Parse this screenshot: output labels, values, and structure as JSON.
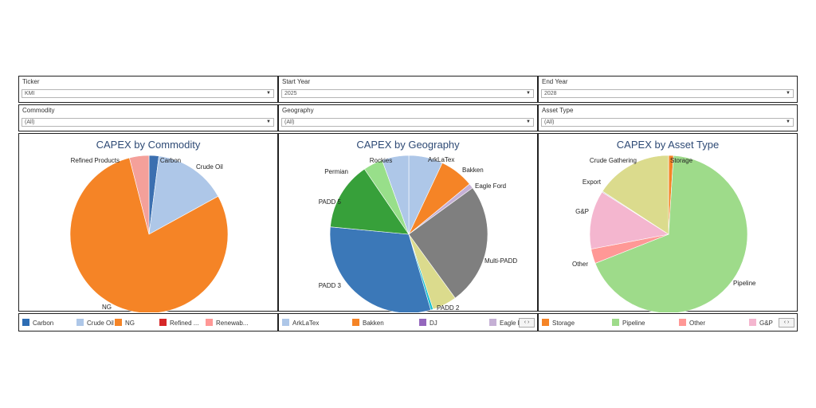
{
  "filters": [
    {
      "label": "Ticker",
      "value": "KMI"
    },
    {
      "label": "Start Year",
      "value": "2025"
    },
    {
      "label": "End Year",
      "value": "2028"
    },
    {
      "label": "Commodity",
      "value": "(All)"
    },
    {
      "label": "Geography",
      "value": "(All)"
    },
    {
      "label": "Asset Type",
      "value": "(All)"
    }
  ],
  "chart_data": [
    {
      "type": "pie",
      "title": "CAPEX by Commodity",
      "slices": [
        {
          "label": "Carbon",
          "value": 2,
          "color": "#3b6fb0"
        },
        {
          "label": "Crude Oil",
          "value": 15,
          "color": "#aec7e8"
        },
        {
          "label": "NG",
          "value": 79,
          "color": "#f58426"
        },
        {
          "label": "Refined Products",
          "value": 4,
          "color": "#f4a09a"
        }
      ],
      "legend": [
        {
          "label": "Carbon",
          "color": "#2d6db4"
        },
        {
          "label": "Crude Oil",
          "color": "#aec7e8"
        },
        {
          "label": "NG",
          "color": "#f58426"
        },
        {
          "label": "Refined ...",
          "color": "#d62728"
        },
        {
          "label": "Renewab...",
          "color": "#ff9896"
        }
      ]
    },
    {
      "type": "pie",
      "title": "CAPEX by Geography",
      "slices": [
        {
          "label": "ArkLaTex",
          "value": 7,
          "color": "#aec7e8"
        },
        {
          "label": "Bakken",
          "value": 7,
          "color": "#f58426"
        },
        {
          "label": "Eagle Ford",
          "value": 1,
          "color": "#c5b0d5"
        },
        {
          "label": "Multi-PADD",
          "value": 25,
          "color": "#7f7f7f"
        },
        {
          "label": "PADD 2",
          "value": 5,
          "color": "#dbdb8d"
        },
        {
          "label": "",
          "value": 0.5,
          "color": "#17becf"
        },
        {
          "label": "PADD 3",
          "value": 31,
          "color": "#3b78b8"
        },
        {
          "label": "PADD 5",
          "value": 0,
          "color": "#98df8a"
        },
        {
          "label": "Permian",
          "value": 14,
          "color": "#37a03a"
        },
        {
          "label": "Rockies",
          "value": 4,
          "color": "#98df8a"
        },
        {
          "label": "",
          "value": 5.5,
          "color": "#aec7e8"
        }
      ],
      "legend": [
        {
          "label": "ArkLaTex",
          "color": "#aec7e8"
        },
        {
          "label": "Bakken",
          "color": "#f58426"
        },
        {
          "label": "DJ",
          "color": "#9467bd"
        },
        {
          "label": "Eagle F",
          "color": "#c5b0d5"
        }
      ]
    },
    {
      "type": "pie",
      "title": "CAPEX by Asset Type",
      "slices": [
        {
          "label": "Storage",
          "value": 1,
          "color": "#f58426"
        },
        {
          "label": "Pipeline",
          "value": 68,
          "color": "#9edb8a"
        },
        {
          "label": "Other",
          "value": 3,
          "color": "#ff9896"
        },
        {
          "label": "G&P",
          "value": 12,
          "color": "#f4b6cf"
        },
        {
          "label": "Export",
          "value": 0.2,
          "color": "#c7c7c7"
        },
        {
          "label": "Crude Gathering",
          "value": 15.8,
          "color": "#dbdb8d"
        }
      ],
      "legend": [
        {
          "label": "Storage",
          "color": "#f58426"
        },
        {
          "label": "Pipeline",
          "color": "#9edb8a"
        },
        {
          "label": "Other",
          "color": "#ff9896"
        },
        {
          "label": "G&P",
          "color": "#f4b6cf"
        }
      ]
    }
  ]
}
